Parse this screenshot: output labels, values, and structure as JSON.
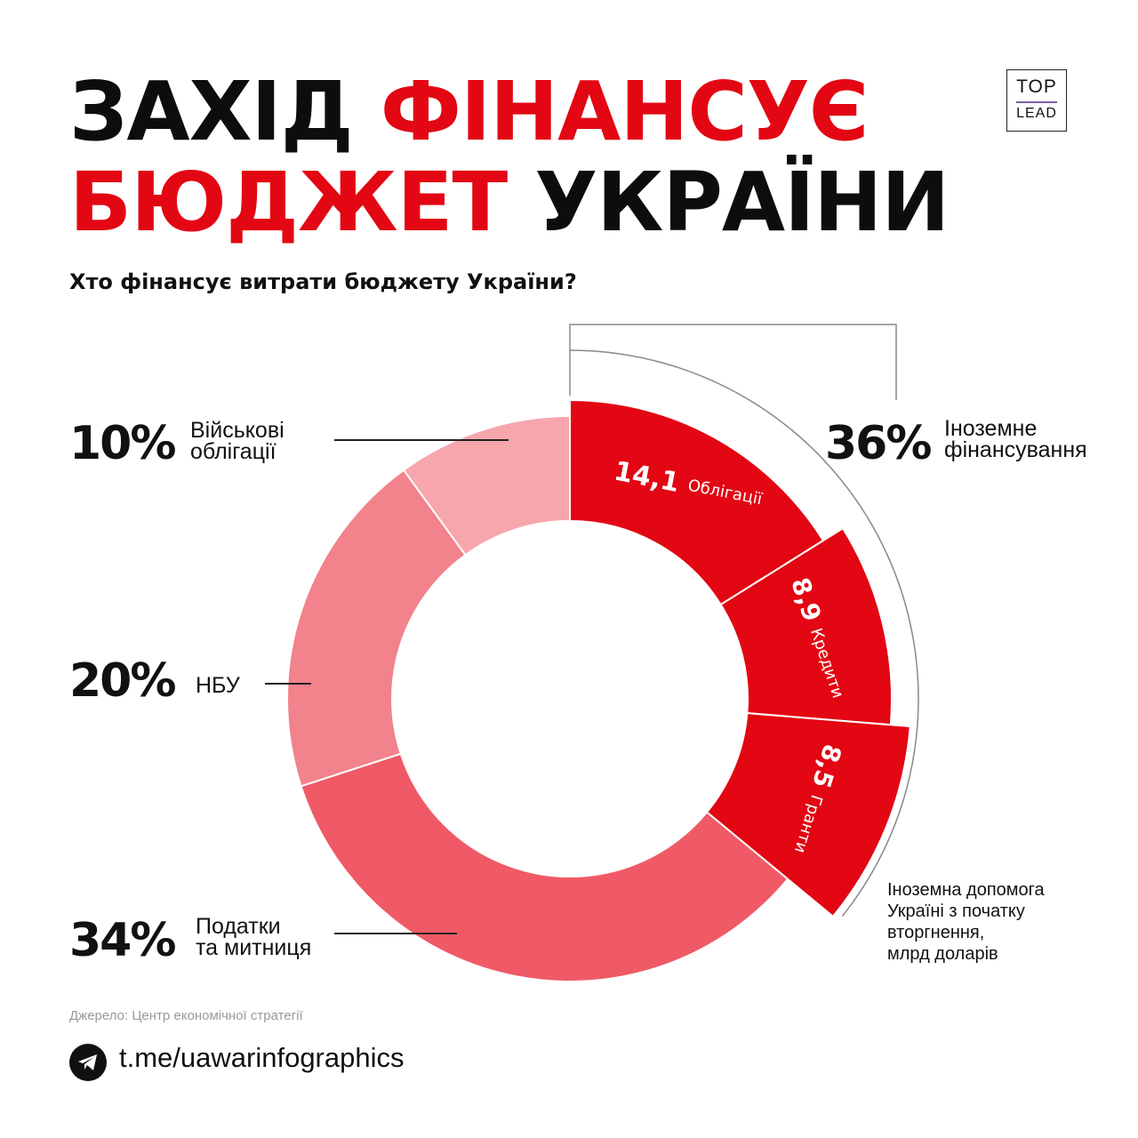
{
  "title": {
    "line1_black": "ЗАХІД",
    "line1_red": "ФІНАНСУЄ",
    "line2_red": "БЮДЖЕТ",
    "line2_black": "УКРАЇНИ"
  },
  "logo": {
    "top": "TOP",
    "bottom": "LEAD"
  },
  "subtitle": "Хто фінансує витрати бюджету України?",
  "chart_data": {
    "type": "pie",
    "title": "Хто фінансує витрати бюджету України?",
    "slices": [
      {
        "label": "Іноземне фінансування",
        "value": 36,
        "value_text": "36%",
        "color": "#e30613"
      },
      {
        "label": "Податки та митниця",
        "value": 34,
        "value_text": "34%",
        "color": "#ef5a66"
      },
      {
        "label": "НБУ",
        "value": 20,
        "value_text": "20%",
        "color": "#f2828b"
      },
      {
        "label": "Військові облігації",
        "value": 10,
        "value_text": "10%",
        "color": "#f7a6ad"
      }
    ],
    "foreign_breakdown": {
      "unit": "млрд доларів",
      "items": [
        {
          "value": 14.1,
          "value_text": "14,1",
          "label": "Облігації"
        },
        {
          "value": 8.9,
          "value_text": "8,9",
          "label": "Кредити"
        },
        {
          "value": 8.5,
          "value_text": "8,5",
          "label": "Гранти"
        }
      ]
    }
  },
  "labels": {
    "military_l1": "Військові",
    "military_l2": "облігації",
    "nbu": "НБУ",
    "taxes_l1": "Податки",
    "taxes_l2": "та митниця",
    "foreign_l1": "Іноземне",
    "foreign_l2": "фінансування"
  },
  "note": [
    "Іноземна допомога",
    "Україні з початку",
    "вторгнення,",
    "млрд доларів"
  ],
  "source": "Джерело: Центр економічної стратегії",
  "telegram": {
    "icon": "telegram-icon",
    "link": "t.me/uawarinfographics"
  }
}
